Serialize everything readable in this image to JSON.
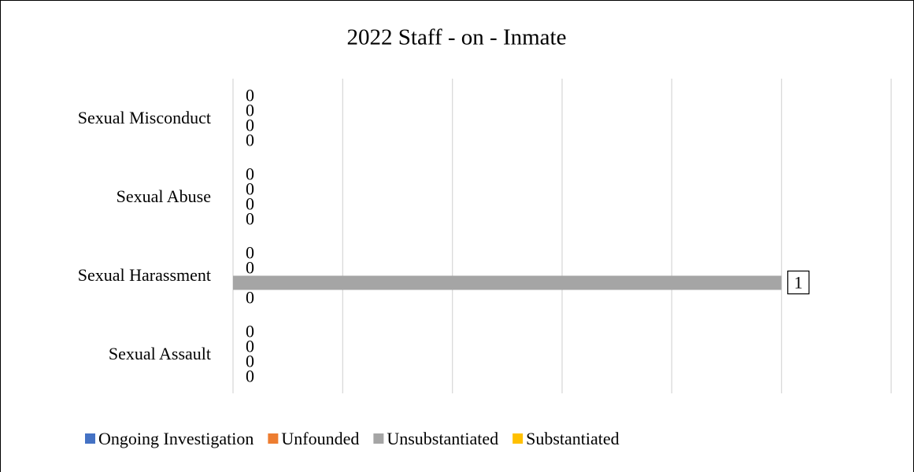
{
  "chart_data": {
    "type": "hbar",
    "title": "2022 Staff - on - Inmate",
    "categories": [
      "Sexual Misconduct",
      "Sexual Abuse",
      "Sexual Harassment",
      "Sexual Assault"
    ],
    "series": [
      {
        "name": "Ongoing Investigation",
        "color": "#4472c4",
        "values": [
          0,
          0,
          0,
          0
        ]
      },
      {
        "name": "Unfounded",
        "color": "#ed7d31",
        "values": [
          0,
          0,
          0,
          0
        ]
      },
      {
        "name": "Unsubstantiated",
        "color": "#a5a5a5",
        "values": [
          0,
          0,
          1,
          0
        ]
      },
      {
        "name": "Substantiated",
        "color": "#ffc000",
        "values": [
          0,
          0,
          0,
          0
        ]
      }
    ],
    "xlim": [
      0,
      1.2
    ],
    "xticks": [
      0,
      0.2,
      0.4,
      0.6,
      0.8,
      1,
      1.2
    ],
    "grid": true,
    "legend": "bottom"
  }
}
